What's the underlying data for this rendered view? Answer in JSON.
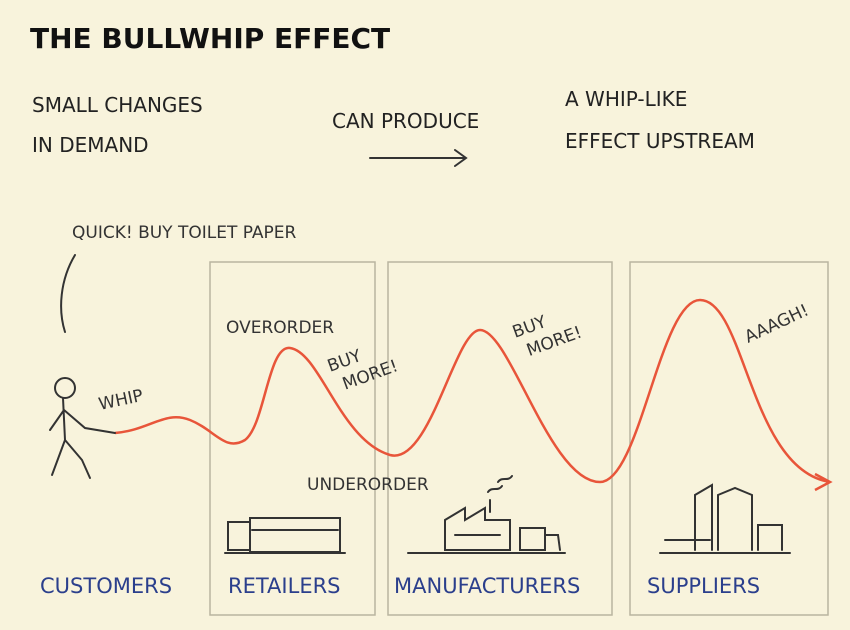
{
  "header": {
    "title": "THE BULLWHIP EFFECT"
  },
  "intro": {
    "cause": [
      "SMALL CHANGES",
      "IN DEMAND"
    ],
    "link": "CAN PRODUCE",
    "effect": [
      "A WHIP-LIKE",
      "EFFECT UPSTREAM"
    ]
  },
  "annotations": {
    "shout": "QUICK! BUY TOILET PAPER",
    "whip": "WHIP",
    "overorder": "OVERORDER",
    "buy_more_1": [
      "BUY",
      "MORE!"
    ],
    "underorder": "UNDERORDER",
    "buy_more_2": [
      "BUY",
      "MORE!"
    ],
    "aaagh": "AAAGH!"
  },
  "stages": [
    "CUSTOMERS",
    "RETAILERS",
    "MANUFACTURERS",
    "SUPPLIERS"
  ]
}
